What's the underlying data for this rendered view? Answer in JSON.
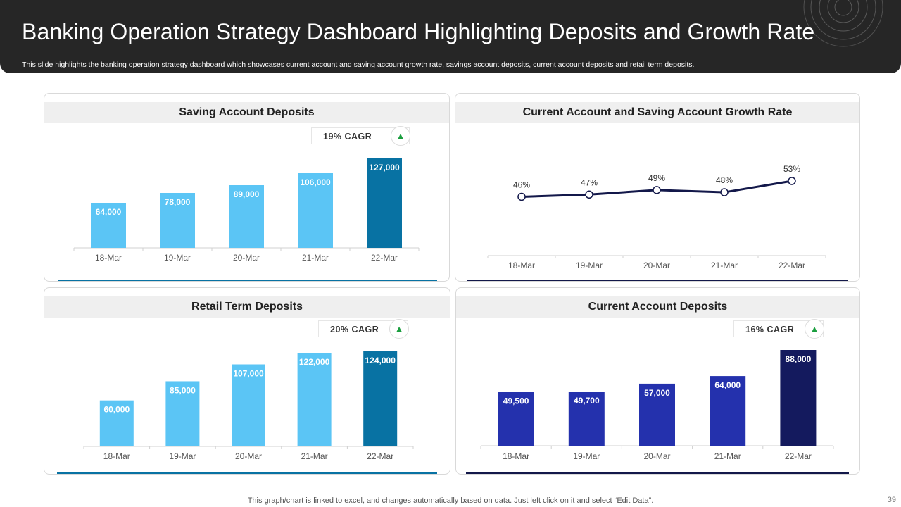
{
  "header": {
    "title": "Banking Operation Strategy Dashboard Highlighting Deposits and Growth Rate",
    "subtitle": "This slide highlights the banking operation strategy dashboard which showcases current account and saving account growth rate,  savings account deposits, current account deposits and retail term deposits."
  },
  "footer": {
    "note": "This graph/chart is linked to excel,  and changes automatically based on data. Just left click on it and select “Edit Data”.",
    "page_number": "39"
  },
  "colors": {
    "header_bg": "#262626",
    "light_blue": "#5bc5f5",
    "dark_teal": "#0872a3",
    "navy_line": "#13184a",
    "royal_blue": "#2431ad",
    "dark_navy": "#141a5e",
    "cagr_arrow": "#1a9e3e"
  },
  "icons": {
    "cagr_arrow": "▲"
  },
  "chart_data": [
    {
      "id": "saving",
      "type": "bar",
      "title": "Saving Account Deposits",
      "categories": [
        "18-Mar",
        "19-Mar",
        "20-Mar",
        "21-Mar",
        "22-Mar"
      ],
      "values": [
        64000,
        78000,
        89000,
        106000,
        127000
      ],
      "labels": [
        "64,000",
        "78,000",
        "89,000",
        "106,000",
        "127,000"
      ],
      "bar_colors": [
        "#5bc5f5",
        "#5bc5f5",
        "#5bc5f5",
        "#5bc5f5",
        "#0872a3"
      ],
      "cagr": "19% CAGR",
      "ylim": [
        0,
        127000
      ]
    },
    {
      "id": "growth",
      "type": "line",
      "title": "Current Account and Saving Account Growth Rate",
      "categories": [
        "18-Mar",
        "19-Mar",
        "20-Mar",
        "21-Mar",
        "22-Mar"
      ],
      "values": [
        46,
        47,
        49,
        48,
        53
      ],
      "labels": [
        "46%",
        "47%",
        "49%",
        "48%",
        "53%"
      ],
      "line_color": "#13184a",
      "ylim": [
        20,
        53
      ]
    },
    {
      "id": "retail",
      "type": "bar",
      "title": "Retail Term Deposits",
      "categories": [
        "18-Mar",
        "19-Mar",
        "20-Mar",
        "21-Mar",
        "22-Mar"
      ],
      "values": [
        60000,
        85000,
        107000,
        122000,
        124000
      ],
      "labels": [
        "60,000",
        "85,000",
        "107,000",
        "122,000",
        "124,000"
      ],
      "bar_colors": [
        "#5bc5f5",
        "#5bc5f5",
        "#5bc5f5",
        "#5bc5f5",
        "#0872a3"
      ],
      "cagr": "20% CAGR",
      "ylim": [
        0,
        124000
      ]
    },
    {
      "id": "current",
      "type": "bar",
      "title": "Current Account Deposits",
      "categories": [
        "18-Mar",
        "19-Mar",
        "20-Mar",
        "21-Mar",
        "22-Mar"
      ],
      "values": [
        49500,
        49700,
        57000,
        64000,
        88000
      ],
      "labels": [
        "49,500",
        "49,700",
        "57,000",
        "64,000",
        "88,000"
      ],
      "bar_colors": [
        "#2431ad",
        "#2431ad",
        "#2431ad",
        "#2431ad",
        "#141a5e"
      ],
      "cagr": "16% CAGR",
      "ylim": [
        0,
        88000
      ]
    }
  ]
}
